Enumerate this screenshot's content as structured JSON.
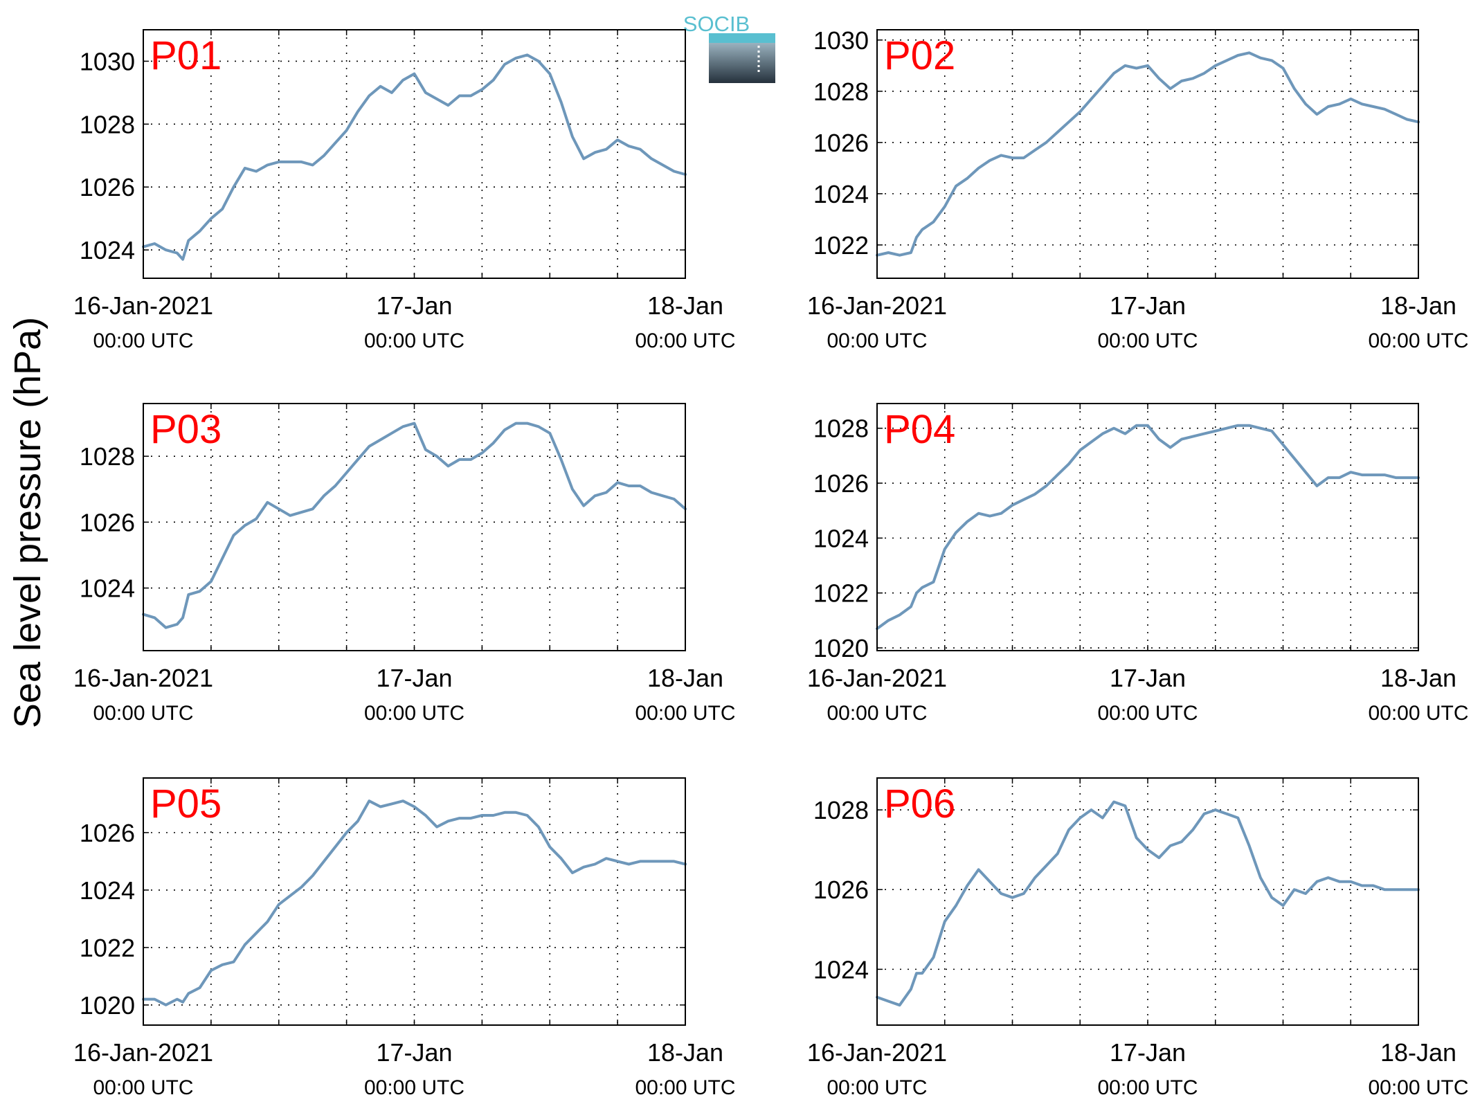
{
  "figure": {
    "ylabel": "Sea level pressure (hPa)",
    "logo_text": "SOCIB"
  },
  "colors": {
    "line": "#6E97BA",
    "panel_label": "#FF0000",
    "axis": "#000000",
    "logo_top": "#59BFD0",
    "logo_dark": "#25313C"
  },
  "chart_data": [
    {
      "type": "line",
      "panel": "P01",
      "x_tick_labels": [
        {
          "main": "16-Jan-2021",
          "sub": "00:00 UTC"
        },
        {
          "main": "17-Jan",
          "sub": "00:00 UTC"
        },
        {
          "main": "18-Jan",
          "sub": "00:00 UTC"
        }
      ],
      "xlim_hours": [
        0,
        48
      ],
      "ylim": [
        1023.1,
        1031.0
      ],
      "yticks": [
        1024,
        1026,
        1028,
        1030
      ],
      "grid": true,
      "series": [
        {
          "x_hours": [
            0,
            1,
            2,
            3,
            3.5,
            4,
            5,
            6,
            7,
            8,
            9,
            10,
            11,
            12,
            13,
            14,
            15,
            16,
            17,
            18,
            19,
            20,
            21,
            22,
            23,
            24,
            25,
            26,
            27,
            28,
            29,
            30,
            31,
            32,
            33,
            34,
            35,
            36,
            37,
            38,
            39,
            40,
            41,
            42,
            43,
            44,
            45,
            46,
            47,
            48
          ],
          "values": [
            1024.1,
            1024.2,
            1024.0,
            1023.9,
            1023.7,
            1024.3,
            1024.6,
            1025.0,
            1025.3,
            1026.0,
            1026.6,
            1026.5,
            1026.7,
            1026.8,
            1026.8,
            1026.8,
            1026.7,
            1027.0,
            1027.4,
            1027.8,
            1028.4,
            1028.9,
            1029.2,
            1029.0,
            1029.4,
            1029.6,
            1029.0,
            1028.8,
            1028.6,
            1028.9,
            1028.9,
            1029.1,
            1029.4,
            1029.9,
            1030.1,
            1030.2,
            1030.0,
            1029.6,
            1028.7,
            1027.6,
            1026.9,
            1027.1,
            1027.2,
            1027.5,
            1027.3,
            1027.2,
            1026.9,
            1026.7,
            1026.5,
            1026.4
          ]
        }
      ]
    },
    {
      "type": "line",
      "panel": "P02",
      "x_tick_labels": [
        {
          "main": "16-Jan-2021",
          "sub": "00:00 UTC"
        },
        {
          "main": "17-Jan",
          "sub": "00:00 UTC"
        },
        {
          "main": "18-Jan",
          "sub": "00:00 UTC"
        }
      ],
      "xlim_hours": [
        0,
        48
      ],
      "ylim": [
        1020.7,
        1030.4
      ],
      "yticks": [
        1022,
        1024,
        1026,
        1028,
        1030
      ],
      "grid": true,
      "series": [
        {
          "x_hours": [
            0,
            1,
            2,
            3,
            3.5,
            4,
            5,
            6,
            7,
            8,
            9,
            10,
            11,
            12,
            13,
            14,
            15,
            16,
            17,
            18,
            19,
            20,
            21,
            22,
            23,
            24,
            25,
            26,
            27,
            28,
            29,
            30,
            31,
            32,
            33,
            34,
            35,
            36,
            37,
            38,
            39,
            40,
            41,
            42,
            43,
            44,
            45,
            46,
            47,
            48
          ],
          "values": [
            1021.6,
            1021.7,
            1021.6,
            1021.7,
            1022.3,
            1022.6,
            1022.9,
            1023.5,
            1024.3,
            1024.6,
            1025.0,
            1025.3,
            1025.5,
            1025.4,
            1025.4,
            1025.7,
            1026.0,
            1026.4,
            1026.8,
            1027.2,
            1027.7,
            1028.2,
            1028.7,
            1029.0,
            1028.9,
            1029.0,
            1028.5,
            1028.1,
            1028.4,
            1028.5,
            1028.7,
            1029.0,
            1029.2,
            1029.4,
            1029.5,
            1029.3,
            1029.2,
            1028.9,
            1028.1,
            1027.5,
            1027.1,
            1027.4,
            1027.5,
            1027.7,
            1027.5,
            1027.4,
            1027.3,
            1027.1,
            1026.9,
            1026.8
          ]
        }
      ]
    },
    {
      "type": "line",
      "panel": "P03",
      "x_tick_labels": [
        {
          "main": "16-Jan-2021",
          "sub": "00:00 UTC"
        },
        {
          "main": "17-Jan",
          "sub": "00:00 UTC"
        },
        {
          "main": "18-Jan",
          "sub": "00:00 UTC"
        }
      ],
      "xlim_hours": [
        0,
        48
      ],
      "ylim": [
        1022.1,
        1029.6
      ],
      "yticks": [
        1024,
        1026,
        1028
      ],
      "grid": true,
      "series": [
        {
          "x_hours": [
            0,
            1,
            2,
            3,
            3.5,
            4,
            5,
            6,
            7,
            8,
            9,
            10,
            11,
            12,
            13,
            14,
            15,
            16,
            17,
            18,
            19,
            20,
            21,
            22,
            23,
            24,
            25,
            26,
            27,
            28,
            29,
            30,
            31,
            32,
            33,
            34,
            35,
            36,
            37,
            38,
            39,
            40,
            41,
            42,
            43,
            44,
            45,
            46,
            47,
            48
          ],
          "values": [
            1023.2,
            1023.1,
            1022.8,
            1022.9,
            1023.1,
            1023.8,
            1023.9,
            1024.2,
            1024.9,
            1025.6,
            1025.9,
            1026.1,
            1026.6,
            1026.4,
            1026.2,
            1026.3,
            1026.4,
            1026.8,
            1027.1,
            1027.5,
            1027.9,
            1028.3,
            1028.5,
            1028.7,
            1028.9,
            1029.0,
            1028.2,
            1028.0,
            1027.7,
            1027.9,
            1027.9,
            1028.1,
            1028.4,
            1028.8,
            1029.0,
            1029.0,
            1028.9,
            1028.7,
            1027.9,
            1027.0,
            1026.5,
            1026.8,
            1026.9,
            1027.2,
            1027.1,
            1027.1,
            1026.9,
            1026.8,
            1026.7,
            1026.4
          ]
        }
      ]
    },
    {
      "type": "line",
      "panel": "P04",
      "x_tick_labels": [
        {
          "main": "16-Jan-2021",
          "sub": "00:00 UTC"
        },
        {
          "main": "17-Jan",
          "sub": "00:00 UTC"
        },
        {
          "main": "18-Jan",
          "sub": "00:00 UTC"
        }
      ],
      "xlim_hours": [
        0,
        48
      ],
      "ylim": [
        1019.9,
        1028.9
      ],
      "yticks": [
        1020,
        1022,
        1024,
        1026,
        1028
      ],
      "grid": true,
      "series": [
        {
          "x_hours": [
            0,
            1,
            2,
            3,
            3.5,
            4,
            5,
            6,
            7,
            8,
            9,
            10,
            11,
            12,
            13,
            14,
            15,
            16,
            17,
            18,
            19,
            20,
            21,
            22,
            23,
            24,
            25,
            26,
            27,
            28,
            29,
            30,
            31,
            32,
            33,
            34,
            35,
            36,
            37,
            38,
            39,
            40,
            41,
            42,
            43,
            44,
            45,
            46,
            47,
            48
          ],
          "values": [
            1020.7,
            1021.0,
            1021.2,
            1021.5,
            1022.0,
            1022.2,
            1022.4,
            1023.6,
            1024.2,
            1024.6,
            1024.9,
            1024.8,
            1024.9,
            1025.2,
            1025.4,
            1025.6,
            1025.9,
            1026.3,
            1026.7,
            1027.2,
            1027.5,
            1027.8,
            1028.0,
            1027.8,
            1028.1,
            1028.1,
            1027.6,
            1027.3,
            1027.6,
            1027.7,
            1027.8,
            1027.9,
            1028.0,
            1028.1,
            1028.1,
            1028.0,
            1027.9,
            1027.4,
            1026.9,
            1026.4,
            1025.9,
            1026.2,
            1026.2,
            1026.4,
            1026.3,
            1026.3,
            1026.3,
            1026.2,
            1026.2,
            1026.2
          ]
        }
      ]
    },
    {
      "type": "line",
      "panel": "P05",
      "x_tick_labels": [
        {
          "main": "16-Jan-2021",
          "sub": "00:00 UTC"
        },
        {
          "main": "17-Jan",
          "sub": "00:00 UTC"
        },
        {
          "main": "18-Jan",
          "sub": "00:00 UTC"
        }
      ],
      "xlim_hours": [
        0,
        48
      ],
      "ylim": [
        1019.3,
        1027.9
      ],
      "yticks": [
        1020,
        1022,
        1024,
        1026
      ],
      "grid": true,
      "series": [
        {
          "x_hours": [
            0,
            1,
            2,
            3,
            3.5,
            4,
            5,
            6,
            7,
            8,
            9,
            10,
            11,
            12,
            13,
            14,
            15,
            16,
            17,
            18,
            19,
            20,
            21,
            22,
            23,
            24,
            25,
            26,
            27,
            28,
            29,
            30,
            31,
            32,
            33,
            34,
            35,
            36,
            37,
            38,
            39,
            40,
            41,
            42,
            43,
            44,
            45,
            46,
            47,
            48
          ],
          "values": [
            1020.2,
            1020.2,
            1020.0,
            1020.2,
            1020.1,
            1020.4,
            1020.6,
            1021.2,
            1021.4,
            1021.5,
            1022.1,
            1022.5,
            1022.9,
            1023.5,
            1023.8,
            1024.1,
            1024.5,
            1025.0,
            1025.5,
            1026.0,
            1026.4,
            1027.1,
            1026.9,
            1027.0,
            1027.1,
            1026.9,
            1026.6,
            1026.2,
            1026.4,
            1026.5,
            1026.5,
            1026.6,
            1026.6,
            1026.7,
            1026.7,
            1026.6,
            1026.2,
            1025.5,
            1025.1,
            1024.6,
            1024.8,
            1024.9,
            1025.1,
            1025.0,
            1024.9,
            1025.0,
            1025.0,
            1025.0,
            1025.0,
            1024.9
          ]
        }
      ]
    },
    {
      "type": "line",
      "panel": "P06",
      "x_tick_labels": [
        {
          "main": "16-Jan-2021",
          "sub": "00:00 UTC"
        },
        {
          "main": "17-Jan",
          "sub": "00:00 UTC"
        },
        {
          "main": "18-Jan",
          "sub": "00:00 UTC"
        }
      ],
      "xlim_hours": [
        0,
        48
      ],
      "ylim": [
        1022.6,
        1028.8
      ],
      "yticks": [
        1024,
        1026,
        1028
      ],
      "grid": true,
      "series": [
        {
          "x_hours": [
            0,
            1,
            2,
            3,
            3.5,
            4,
            5,
            6,
            7,
            8,
            9,
            10,
            11,
            12,
            13,
            14,
            15,
            16,
            17,
            18,
            19,
            20,
            21,
            22,
            23,
            24,
            25,
            26,
            27,
            28,
            29,
            30,
            31,
            32,
            33,
            34,
            35,
            36,
            37,
            38,
            39,
            40,
            41,
            42,
            43,
            44,
            45,
            46,
            47,
            48
          ],
          "values": [
            1023.3,
            1023.2,
            1023.1,
            1023.5,
            1023.9,
            1023.9,
            1024.3,
            1025.2,
            1025.6,
            1026.1,
            1026.5,
            1026.2,
            1025.9,
            1025.8,
            1025.9,
            1026.3,
            1026.6,
            1026.9,
            1027.5,
            1027.8,
            1028.0,
            1027.8,
            1028.2,
            1028.1,
            1027.3,
            1027.0,
            1026.8,
            1027.1,
            1027.2,
            1027.5,
            1027.9,
            1028.0,
            1027.9,
            1027.8,
            1027.1,
            1026.3,
            1025.8,
            1025.6,
            1026.0,
            1025.9,
            1026.2,
            1026.3,
            1026.2,
            1026.2,
            1026.1,
            1026.1,
            1026.0,
            1026.0,
            1026.0,
            1026.0
          ]
        }
      ]
    }
  ]
}
